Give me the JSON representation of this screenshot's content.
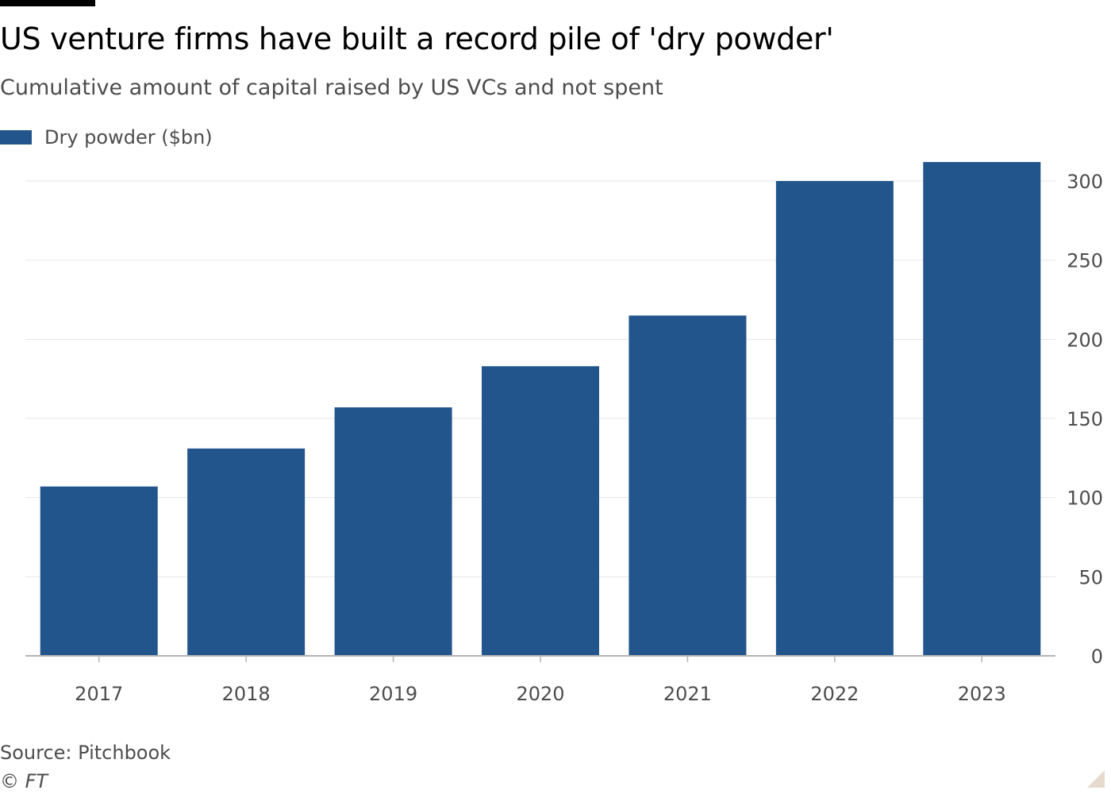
{
  "header": {
    "title": "US venture firms have built a record pile of 'dry powder'",
    "subtitle": "Cumulative amount of capital raised by US VCs and not spent"
  },
  "legend": {
    "label": "Dry powder ($bn)"
  },
  "footer": {
    "source": "Source: Pitchbook",
    "copyright": "© FT"
  },
  "colors": {
    "bar": "#21558b",
    "grid": "#e6e6e6",
    "axis": "#b3b3b3",
    "text_muted": "#4d4d4d"
  },
  "chart_data": {
    "type": "bar",
    "title": "US venture firms have built a record pile of 'dry powder'",
    "subtitle": "Cumulative amount of capital raised by US VCs and not spent",
    "xlabel": "",
    "ylabel": "",
    "categories": [
      "2017",
      "2018",
      "2019",
      "2020",
      "2021",
      "2022",
      "2023"
    ],
    "series": [
      {
        "name": "Dry powder ($bn)",
        "values": [
          107,
          131,
          157,
          183,
          215,
          300,
          312
        ]
      }
    ],
    "ylim": [
      0,
      300
    ],
    "yticks": [
      "0",
      "50",
      "100",
      "150",
      "200",
      "250",
      "300"
    ],
    "y_axis_side": "right",
    "grid": true,
    "legend_position": "top-left"
  }
}
